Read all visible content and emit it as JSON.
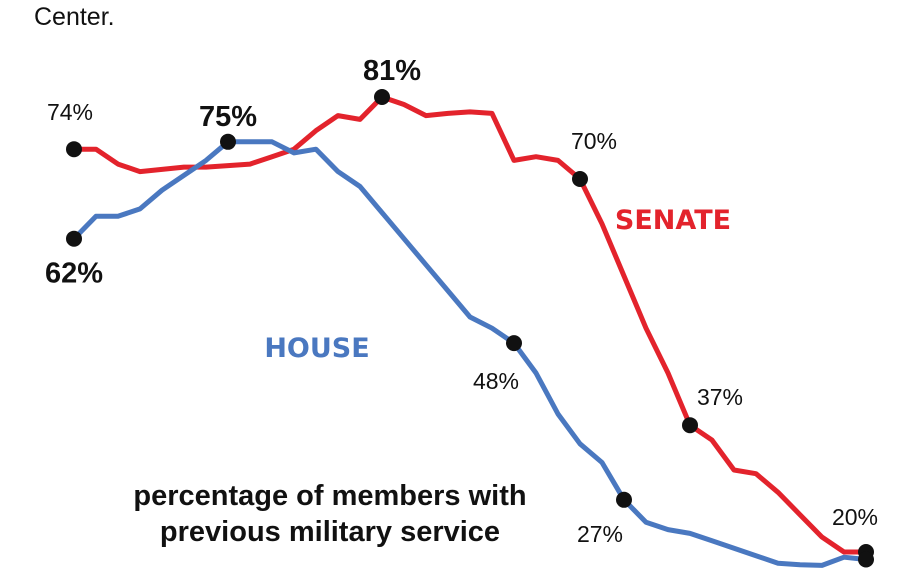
{
  "source_fragment": "Center.",
  "caption": {
    "line1": "percentage of members with",
    "line2": "previous military service"
  },
  "colors": {
    "senate": "#e3232c",
    "house": "#4a78c0",
    "text": "#111111"
  },
  "chart_data": {
    "type": "line",
    "title": "",
    "xlabel": "",
    "ylabel": "",
    "ylim": [
      18,
      84
    ],
    "series": [
      {
        "name": "SENATE",
        "values": [
          74,
          74,
          72,
          71,
          71.3,
          71.6,
          71.6,
          71.8,
          72,
          73,
          74,
          76.5,
          78.5,
          78,
          81,
          80,
          78.5,
          78.8,
          79,
          78.8,
          72.5,
          73,
          72.5,
          70,
          64,
          57,
          50,
          44,
          37,
          35,
          31,
          30.5,
          28,
          25,
          22,
          20,
          20
        ],
        "labeled_points": [
          {
            "index": 0,
            "value": 74,
            "label": "74%"
          },
          {
            "index": 14,
            "value": 81,
            "label": "81%"
          },
          {
            "index": 23,
            "value": 70,
            "label": "70%"
          },
          {
            "index": 28,
            "value": 37,
            "label": "37%"
          },
          {
            "index": 36,
            "value": 20,
            "label": "20%"
          }
        ]
      },
      {
        "name": "HOUSE",
        "values": [
          62,
          65,
          65,
          66,
          68.5,
          70.5,
          72.5,
          75,
          75,
          75,
          73.5,
          74,
          71,
          69,
          65.5,
          62,
          58.5,
          55,
          51.5,
          50,
          48,
          44,
          38.5,
          34.5,
          32,
          27,
          24,
          23,
          22.5,
          21.5,
          20.5,
          19.5,
          18.5,
          18.3,
          18.2,
          19.3,
          19
        ],
        "labeled_points": [
          {
            "index": 0,
            "value": 62,
            "label": "62%"
          },
          {
            "index": 7,
            "value": 75,
            "label": "75%"
          },
          {
            "index": 20,
            "value": 48,
            "label": "48%"
          },
          {
            "index": 25,
            "value": 27,
            "label": "27%"
          },
          {
            "index": 36,
            "value": 19,
            "label": ""
          }
        ]
      }
    ],
    "grid": false,
    "axes_visible": false
  }
}
